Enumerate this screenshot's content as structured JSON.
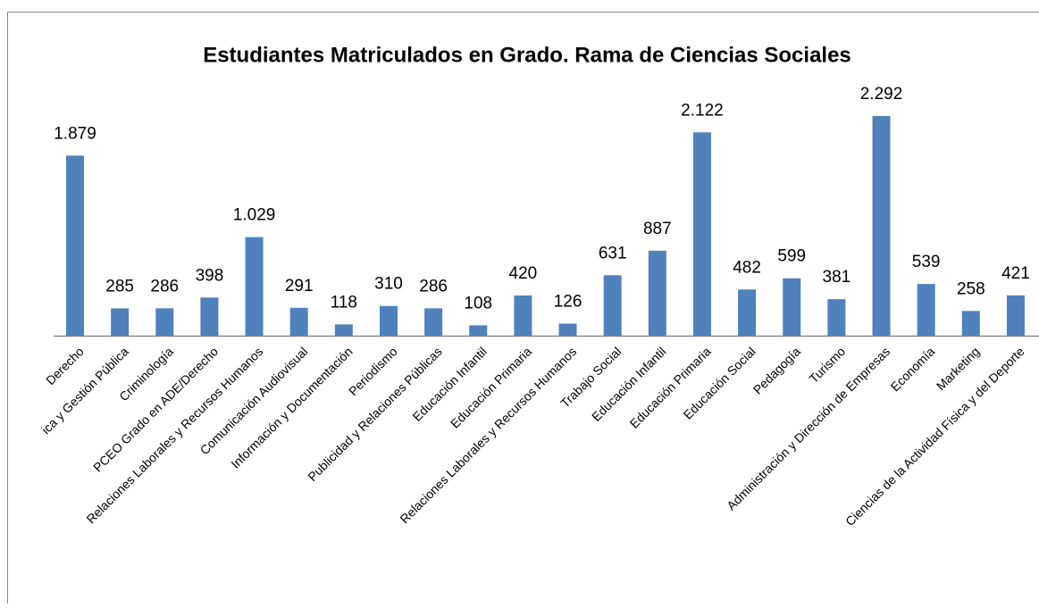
{
  "chart_data": {
    "type": "bar",
    "title": "Estudiantes Matriculados en Grado. Rama de Ciencias Sociales",
    "categories": [
      "Derecho",
      "ica y Gestión Pública",
      "Criminología",
      "PCEO Grado en ADE/Derecho",
      "Relaciones Laborales y Recursos Humanos",
      "Comunicación Audiovisual",
      "Información y Documentación",
      "Periodismo",
      "Publicidad y Relaciones Públicas",
      "Educación Infantil",
      "Educación Primaria",
      "Relaciones Laborales y Recursos Humanos",
      "Trabajo Social",
      "Educación Infantil",
      "Educación Primaria",
      "Educación Social",
      "Pedagogía",
      "Turismo",
      "Administración y Dirección de Empresas",
      "Economía",
      "Marketing",
      "Ciencias de la Actividad Física y del Deporte"
    ],
    "values": [
      1879,
      285,
      286,
      398,
      1029,
      291,
      118,
      310,
      286,
      108,
      420,
      126,
      631,
      887,
      2122,
      482,
      599,
      381,
      2292,
      539,
      258,
      421
    ],
    "value_labels": [
      "1.879",
      "285",
      "286",
      "398",
      "1.029",
      "291",
      "118",
      "310",
      "286",
      "108",
      "420",
      "126",
      "631",
      "887",
      "2.122",
      "482",
      "599",
      "381",
      "2.292",
      "539",
      "258",
      "421"
    ],
    "color": "#4f81bd"
  }
}
